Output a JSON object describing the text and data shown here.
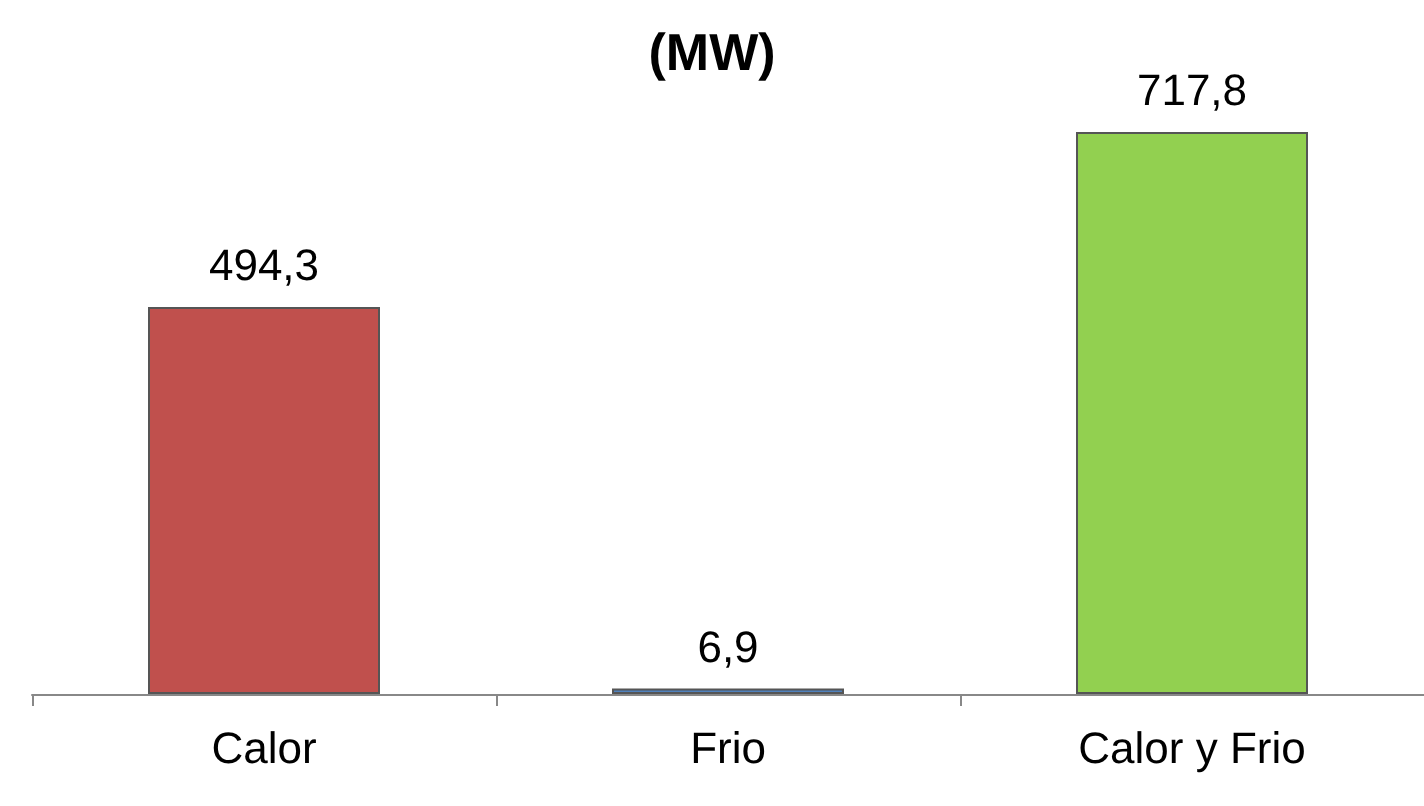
{
  "chart_data": {
    "type": "bar",
    "title": "(MW)",
    "categories": [
      "Calor",
      "Frio",
      "Calor y Frio"
    ],
    "values": [
      494.3,
      6.9,
      717.8
    ],
    "colors": [
      "#c0504d",
      "#4f81bd",
      "#92d050"
    ],
    "value_labels": [
      "494,3",
      "6,9",
      "717,8"
    ]
  }
}
